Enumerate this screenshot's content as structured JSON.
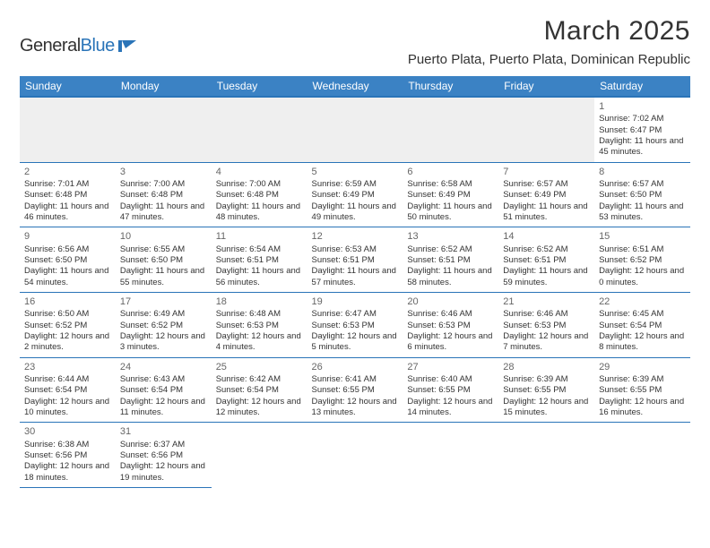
{
  "logo": {
    "part1": "General",
    "part2": "Blue"
  },
  "title": "March 2025",
  "location": "Puerto Plata, Puerto Plata, Dominican Republic",
  "colors": {
    "header_bg": "#3b82c4",
    "accent": "#2a74b8",
    "text": "#333333"
  },
  "weekdays": [
    "Sunday",
    "Monday",
    "Tuesday",
    "Wednesday",
    "Thursday",
    "Friday",
    "Saturday"
  ],
  "weeks": [
    [
      null,
      null,
      null,
      null,
      null,
      null,
      {
        "n": "1",
        "sr": "Sunrise: 7:02 AM",
        "ss": "Sunset: 6:47 PM",
        "dl": "Daylight: 11 hours and 45 minutes."
      }
    ],
    [
      {
        "n": "2",
        "sr": "Sunrise: 7:01 AM",
        "ss": "Sunset: 6:48 PM",
        "dl": "Daylight: 11 hours and 46 minutes."
      },
      {
        "n": "3",
        "sr": "Sunrise: 7:00 AM",
        "ss": "Sunset: 6:48 PM",
        "dl": "Daylight: 11 hours and 47 minutes."
      },
      {
        "n": "4",
        "sr": "Sunrise: 7:00 AM",
        "ss": "Sunset: 6:48 PM",
        "dl": "Daylight: 11 hours and 48 minutes."
      },
      {
        "n": "5",
        "sr": "Sunrise: 6:59 AM",
        "ss": "Sunset: 6:49 PM",
        "dl": "Daylight: 11 hours and 49 minutes."
      },
      {
        "n": "6",
        "sr": "Sunrise: 6:58 AM",
        "ss": "Sunset: 6:49 PM",
        "dl": "Daylight: 11 hours and 50 minutes."
      },
      {
        "n": "7",
        "sr": "Sunrise: 6:57 AM",
        "ss": "Sunset: 6:49 PM",
        "dl": "Daylight: 11 hours and 51 minutes."
      },
      {
        "n": "8",
        "sr": "Sunrise: 6:57 AM",
        "ss": "Sunset: 6:50 PM",
        "dl": "Daylight: 11 hours and 53 minutes."
      }
    ],
    [
      {
        "n": "9",
        "sr": "Sunrise: 6:56 AM",
        "ss": "Sunset: 6:50 PM",
        "dl": "Daylight: 11 hours and 54 minutes."
      },
      {
        "n": "10",
        "sr": "Sunrise: 6:55 AM",
        "ss": "Sunset: 6:50 PM",
        "dl": "Daylight: 11 hours and 55 minutes."
      },
      {
        "n": "11",
        "sr": "Sunrise: 6:54 AM",
        "ss": "Sunset: 6:51 PM",
        "dl": "Daylight: 11 hours and 56 minutes."
      },
      {
        "n": "12",
        "sr": "Sunrise: 6:53 AM",
        "ss": "Sunset: 6:51 PM",
        "dl": "Daylight: 11 hours and 57 minutes."
      },
      {
        "n": "13",
        "sr": "Sunrise: 6:52 AM",
        "ss": "Sunset: 6:51 PM",
        "dl": "Daylight: 11 hours and 58 minutes."
      },
      {
        "n": "14",
        "sr": "Sunrise: 6:52 AM",
        "ss": "Sunset: 6:51 PM",
        "dl": "Daylight: 11 hours and 59 minutes."
      },
      {
        "n": "15",
        "sr": "Sunrise: 6:51 AM",
        "ss": "Sunset: 6:52 PM",
        "dl": "Daylight: 12 hours and 0 minutes."
      }
    ],
    [
      {
        "n": "16",
        "sr": "Sunrise: 6:50 AM",
        "ss": "Sunset: 6:52 PM",
        "dl": "Daylight: 12 hours and 2 minutes."
      },
      {
        "n": "17",
        "sr": "Sunrise: 6:49 AM",
        "ss": "Sunset: 6:52 PM",
        "dl": "Daylight: 12 hours and 3 minutes."
      },
      {
        "n": "18",
        "sr": "Sunrise: 6:48 AM",
        "ss": "Sunset: 6:53 PM",
        "dl": "Daylight: 12 hours and 4 minutes."
      },
      {
        "n": "19",
        "sr": "Sunrise: 6:47 AM",
        "ss": "Sunset: 6:53 PM",
        "dl": "Daylight: 12 hours and 5 minutes."
      },
      {
        "n": "20",
        "sr": "Sunrise: 6:46 AM",
        "ss": "Sunset: 6:53 PM",
        "dl": "Daylight: 12 hours and 6 minutes."
      },
      {
        "n": "21",
        "sr": "Sunrise: 6:46 AM",
        "ss": "Sunset: 6:53 PM",
        "dl": "Daylight: 12 hours and 7 minutes."
      },
      {
        "n": "22",
        "sr": "Sunrise: 6:45 AM",
        "ss": "Sunset: 6:54 PM",
        "dl": "Daylight: 12 hours and 8 minutes."
      }
    ],
    [
      {
        "n": "23",
        "sr": "Sunrise: 6:44 AM",
        "ss": "Sunset: 6:54 PM",
        "dl": "Daylight: 12 hours and 10 minutes."
      },
      {
        "n": "24",
        "sr": "Sunrise: 6:43 AM",
        "ss": "Sunset: 6:54 PM",
        "dl": "Daylight: 12 hours and 11 minutes."
      },
      {
        "n": "25",
        "sr": "Sunrise: 6:42 AM",
        "ss": "Sunset: 6:54 PM",
        "dl": "Daylight: 12 hours and 12 minutes."
      },
      {
        "n": "26",
        "sr": "Sunrise: 6:41 AM",
        "ss": "Sunset: 6:55 PM",
        "dl": "Daylight: 12 hours and 13 minutes."
      },
      {
        "n": "27",
        "sr": "Sunrise: 6:40 AM",
        "ss": "Sunset: 6:55 PM",
        "dl": "Daylight: 12 hours and 14 minutes."
      },
      {
        "n": "28",
        "sr": "Sunrise: 6:39 AM",
        "ss": "Sunset: 6:55 PM",
        "dl": "Daylight: 12 hours and 15 minutes."
      },
      {
        "n": "29",
        "sr": "Sunrise: 6:39 AM",
        "ss": "Sunset: 6:55 PM",
        "dl": "Daylight: 12 hours and 16 minutes."
      }
    ],
    [
      {
        "n": "30",
        "sr": "Sunrise: 6:38 AM",
        "ss": "Sunset: 6:56 PM",
        "dl": "Daylight: 12 hours and 18 minutes."
      },
      {
        "n": "31",
        "sr": "Sunrise: 6:37 AM",
        "ss": "Sunset: 6:56 PM",
        "dl": "Daylight: 12 hours and 19 minutes."
      },
      null,
      null,
      null,
      null,
      null
    ]
  ]
}
